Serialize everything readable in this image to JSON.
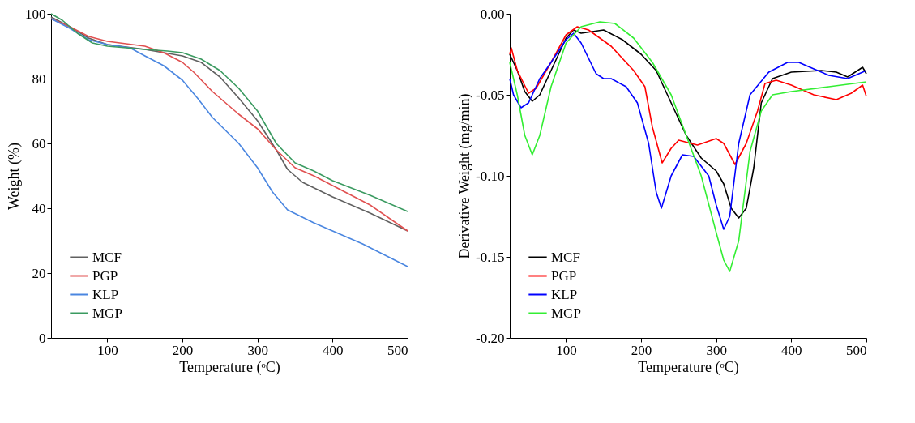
{
  "chart_data": [
    {
      "type": "line",
      "xlabel": "Temperature (ᵒC)",
      "ylabel": "Weight (%)",
      "xlim": [
        25,
        500
      ],
      "xticks": [
        100,
        200,
        300,
        400,
        500
      ],
      "ylim": [
        0,
        100
      ],
      "yticks": [
        0,
        20,
        40,
        60,
        80,
        100
      ],
      "grid": false,
      "legend": "bottom left",
      "line_style": "solid",
      "marker": "none",
      "series": [
        {
          "name": "MCF",
          "color": "#606060",
          "x": [
            25,
            50,
            75,
            100,
            150,
            200,
            225,
            250,
            275,
            300,
            325,
            340,
            360,
            400,
            450,
            500
          ],
          "values": [
            99,
            96,
            92.5,
            90.5,
            89,
            87,
            85,
            80.5,
            74,
            67,
            58,
            52,
            48,
            43.5,
            38.5,
            33
          ]
        },
        {
          "name": "PGP",
          "color": "#e05050",
          "x": [
            25,
            50,
            75,
            100,
            150,
            175,
            200,
            215,
            240,
            275,
            300,
            325,
            350,
            375,
            400,
            450,
            500
          ],
          "values": [
            98.5,
            96,
            93,
            91.5,
            90,
            88,
            85,
            82,
            76,
            69,
            64.5,
            58,
            52.5,
            50,
            47,
            41,
            33
          ]
        },
        {
          "name": "KLP",
          "color": "#4a86e0",
          "x": [
            25,
            50,
            75,
            100,
            130,
            150,
            175,
            200,
            220,
            240,
            275,
            300,
            320,
            340,
            375,
            400,
            440,
            500
          ],
          "values": [
            98.5,
            95.5,
            92,
            90.5,
            89.5,
            87,
            84,
            79.5,
            74,
            68,
            60,
            52.5,
            45,
            39.5,
            35.5,
            33,
            29,
            22
          ]
        },
        {
          "name": "MGP",
          "color": "#3a9a60",
          "x": [
            25,
            40,
            60,
            80,
            100,
            150,
            180,
            200,
            225,
            250,
            275,
            300,
            325,
            350,
            375,
            400,
            450,
            500
          ],
          "values": [
            100,
            98,
            94,
            91,
            90,
            89,
            88.5,
            88,
            86,
            82.5,
            77,
            70,
            60,
            54,
            51.5,
            48.5,
            44,
            39
          ]
        }
      ]
    },
    {
      "type": "line",
      "xlabel": "Temperature (ᵒC)",
      "ylabel": "Derivative Weight (mg/min)",
      "xlim": [
        25,
        500
      ],
      "xticks": [
        100,
        200,
        300,
        400,
        500
      ],
      "ylim": [
        -0.2,
        0.0
      ],
      "yticks": [
        {
          "value": -0.2,
          "label": "-0.20"
        },
        {
          "value": -0.15,
          "label": "-0.15"
        },
        {
          "value": -0.1,
          "label": "-0.10"
        },
        {
          "value": -0.05,
          "label": "-0.05"
        },
        {
          "value": 0.0,
          "label": "0.00"
        }
      ],
      "grid": false,
      "legend": "bottom left",
      "line_style": "solid",
      "marker": "none",
      "series": [
        {
          "name": "MCF",
          "color": "#000000",
          "x": [
            25,
            35,
            45,
            55,
            65,
            80,
            100,
            110,
            120,
            150,
            175,
            200,
            220,
            240,
            260,
            280,
            300,
            310,
            320,
            330,
            340,
            350,
            360,
            375,
            400,
            440,
            460,
            475,
            495,
            500
          ],
          "values": [
            -0.025,
            -0.035,
            -0.048,
            -0.054,
            -0.05,
            -0.035,
            -0.015,
            -0.01,
            -0.012,
            -0.01,
            -0.016,
            -0.025,
            -0.035,
            -0.055,
            -0.075,
            -0.089,
            -0.097,
            -0.105,
            -0.12,
            -0.126,
            -0.12,
            -0.095,
            -0.055,
            -0.04,
            -0.036,
            -0.035,
            -0.036,
            -0.039,
            -0.033,
            -0.037
          ]
        },
        {
          "name": "PGP",
          "color": "#ff0000",
          "x": [
            25,
            27,
            35,
            50,
            60,
            80,
            100,
            115,
            130,
            160,
            190,
            205,
            215,
            228,
            240,
            250,
            275,
            300,
            310,
            325,
            340,
            355,
            365,
            380,
            400,
            430,
            460,
            480,
            495,
            500
          ],
          "values": [
            -0.025,
            -0.021,
            -0.035,
            -0.049,
            -0.046,
            -0.03,
            -0.013,
            -0.008,
            -0.01,
            -0.02,
            -0.035,
            -0.045,
            -0.07,
            -0.092,
            -0.083,
            -0.078,
            -0.081,
            -0.077,
            -0.08,
            -0.093,
            -0.08,
            -0.06,
            -0.043,
            -0.041,
            -0.044,
            -0.05,
            -0.053,
            -0.049,
            -0.044,
            -0.051
          ]
        },
        {
          "name": "KLP",
          "color": "#0000ff",
          "x": [
            25,
            30,
            40,
            50,
            65,
            80,
            100,
            110,
            120,
            140,
            150,
            160,
            180,
            195,
            210,
            220,
            227,
            240,
            255,
            270,
            290,
            300,
            310,
            318,
            330,
            345,
            370,
            395,
            410,
            430,
            450,
            475,
            500
          ],
          "values": [
            -0.04,
            -0.05,
            -0.058,
            -0.055,
            -0.04,
            -0.03,
            -0.016,
            -0.012,
            -0.018,
            -0.037,
            -0.04,
            -0.04,
            -0.045,
            -0.055,
            -0.08,
            -0.11,
            -0.12,
            -0.1,
            -0.087,
            -0.088,
            -0.1,
            -0.118,
            -0.133,
            -0.125,
            -0.08,
            -0.05,
            -0.036,
            -0.03,
            -0.03,
            -0.034,
            -0.038,
            -0.04,
            -0.035
          ]
        },
        {
          "name": "MGP",
          "color": "#33ee33",
          "x": [
            25,
            35,
            45,
            55,
            65,
            80,
            100,
            120,
            145,
            165,
            190,
            215,
            240,
            260,
            280,
            300,
            310,
            318,
            330,
            345,
            360,
            375,
            400,
            450,
            500
          ],
          "values": [
            -0.03,
            -0.05,
            -0.075,
            -0.087,
            -0.075,
            -0.045,
            -0.018,
            -0.008,
            -0.005,
            -0.006,
            -0.015,
            -0.03,
            -0.05,
            -0.075,
            -0.1,
            -0.135,
            -0.152,
            -0.159,
            -0.14,
            -0.085,
            -0.06,
            -0.05,
            -0.048,
            -0.045,
            -0.042
          ]
        }
      ]
    }
  ]
}
